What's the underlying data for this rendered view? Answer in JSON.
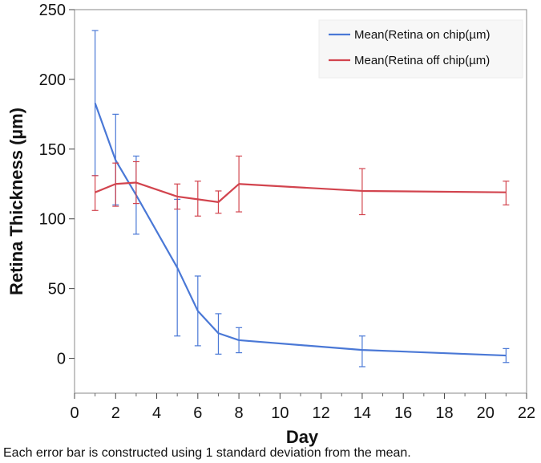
{
  "chart_data": {
    "type": "line",
    "title": "",
    "xlabel": "Day",
    "ylabel": "Retina Thickness (µm)",
    "xlim": [
      0,
      22
    ],
    "ylim": [
      -25,
      250
    ],
    "xticks": [
      0,
      2,
      4,
      6,
      8,
      10,
      12,
      14,
      16,
      18,
      20,
      22
    ],
    "yticks": [
      0,
      50,
      100,
      150,
      200,
      250
    ],
    "grid": false,
    "legend_position": "top-right",
    "error_bars": "1 standard deviation",
    "series": [
      {
        "name": "Mean(Retina on chip(µm)",
        "color": "#4a78d6",
        "x": [
          1,
          2,
          3,
          5,
          6,
          7,
          8,
          14,
          21
        ],
        "y": [
          183,
          142,
          117,
          65,
          34,
          18,
          13,
          6,
          2
        ],
        "err_low": [
          131,
          110,
          89,
          16,
          9,
          3,
          4,
          -6,
          -3
        ],
        "err_high": [
          235,
          175,
          145,
          114,
          59,
          32,
          22,
          16,
          7
        ]
      },
      {
        "name": "Mean(Retina off chip(µm)",
        "color": "#d2444e",
        "x": [
          1,
          2,
          3,
          5,
          6,
          7,
          8,
          14,
          21
        ],
        "y": [
          119,
          125,
          126,
          116,
          114,
          112,
          125,
          120,
          119
        ],
        "err_low": [
          106,
          109,
          111,
          107,
          102,
          104,
          105,
          103,
          110
        ],
        "err_high": [
          131,
          140,
          141,
          125,
          127,
          120,
          145,
          136,
          127
        ]
      }
    ]
  },
  "footnote": "Each error bar is constructed using 1 standard deviation from the mean."
}
